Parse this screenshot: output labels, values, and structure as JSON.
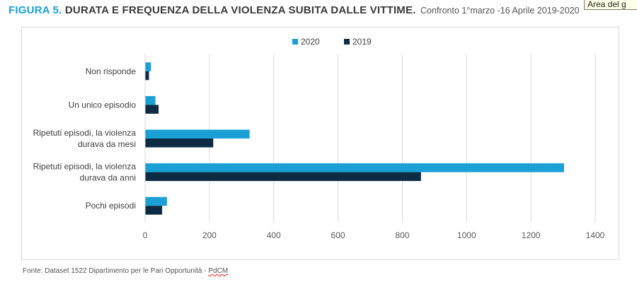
{
  "figure_label": "FIGURA 5.",
  "tooltip_text": "Area del g",
  "chart_data": {
    "type": "bar",
    "orientation": "horizontal",
    "title": "DURATA E FREQUENZA DELLA VIOLENZA SUBITA DALLE VITTIME.",
    "subtitle": "Confronto 1°marzo -16 Aprile 2019-2020",
    "categories": [
      "Non risponde",
      "Un unico episodio",
      "Ripetuti episodi, la violenza durava da mesi",
      "Ripetuti episodi, la violenza durava da anni",
      "Pochi episodi"
    ],
    "category_lines": [
      [
        "Non risponde"
      ],
      [
        "Un unico episodio"
      ],
      [
        "Ripetuti episodi, la violenza",
        "durava da mesi"
      ],
      [
        "Ripetuti episodi, la violenza",
        "durava da anni"
      ],
      [
        "Pochi episodi"
      ]
    ],
    "series": [
      {
        "name": "2020",
        "color": "#1aa0d4",
        "values": [
          18,
          32,
          325,
          1303,
          68
        ]
      },
      {
        "name": "2019",
        "color": "#0d2c44",
        "values": [
          12,
          42,
          212,
          858,
          53
        ]
      }
    ],
    "xlim": [
      0,
      1400
    ],
    "xticks": [
      "0",
      "200",
      "400",
      "600",
      "800",
      "1000",
      "1200",
      "1400"
    ],
    "grid": true,
    "legend_position": "top-center"
  },
  "source": {
    "prefix": "Fonte: Dataset 1522 Dipartimento per le Pari Opportunità - ",
    "squiggled": "PdCM"
  }
}
